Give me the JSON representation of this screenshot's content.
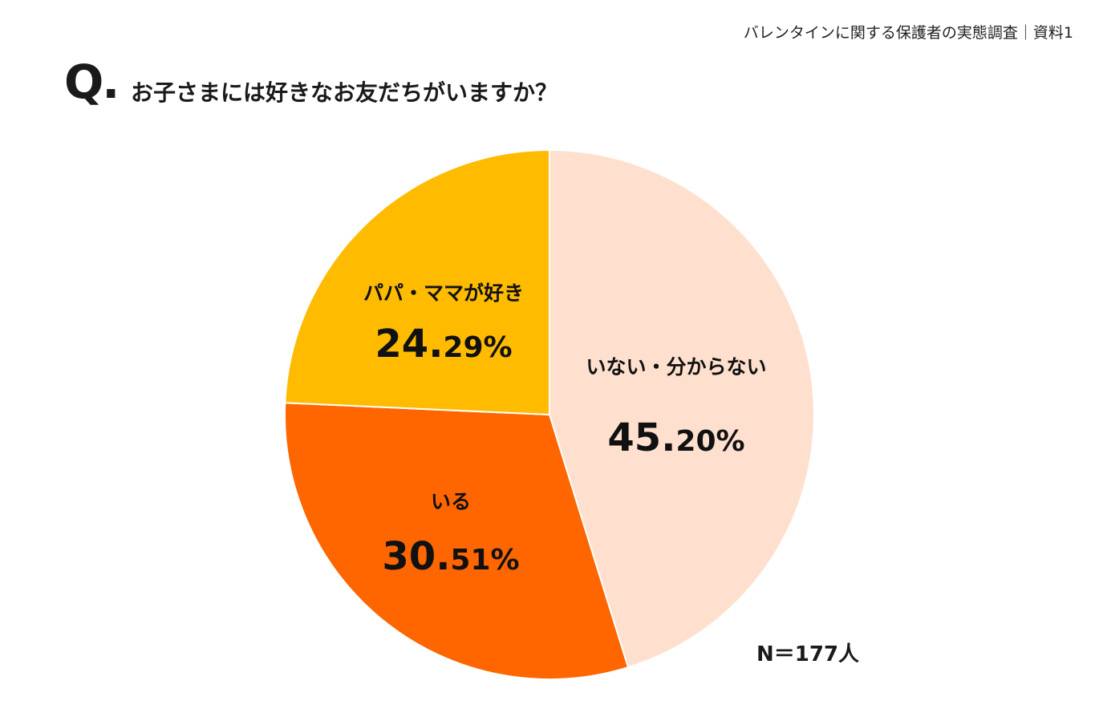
{
  "header": {
    "source": "バレンタインに関する保護者の実態調査｜資料1"
  },
  "question": {
    "prefix": "Q.",
    "text": "お子さまには好きなお友だちがいますか？"
  },
  "sample": "N＝177人",
  "chart_data": {
    "type": "pie",
    "title": "お子さまには好きなお友だちがいますか？",
    "start": "top-clockwise",
    "slices": [
      {
        "label": "いない・分からない",
        "value": 45.2,
        "display": "45.20%",
        "color": "#FFE0CF"
      },
      {
        "label": "いる",
        "value": 30.51,
        "display": "30.51%",
        "color": "#FF6600"
      },
      {
        "label": "パパ・ママが好き",
        "value": 24.29,
        "display": "24.29%",
        "color": "#FFBB00"
      }
    ]
  }
}
